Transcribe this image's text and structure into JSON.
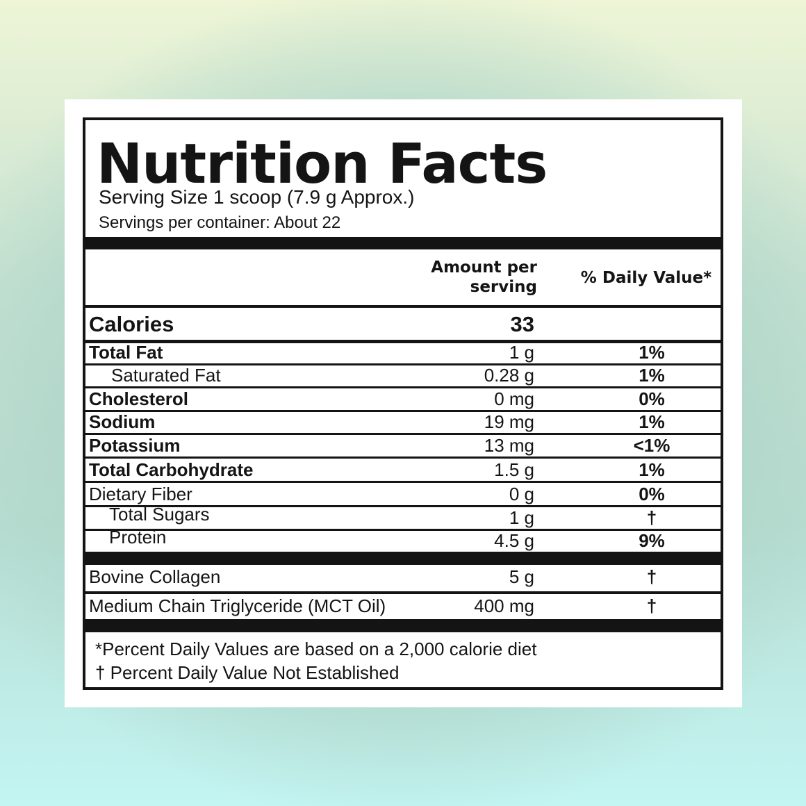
{
  "title": "Nutrition Facts",
  "serving_size": "Serving Size 1 scoop (7.9 g Approx.)",
  "servings_per_container": "Servings per container: About 22",
  "header": {
    "amount_line1": "Amount per",
    "amount_line2": "serving",
    "daily_value": "% Daily Value*"
  },
  "calories": {
    "name": "Calories",
    "amount": "33"
  },
  "nutrients": [
    {
      "name": "Total Fat",
      "amount": "1 g",
      "dv": "1%"
    },
    {
      "name": "Saturated Fat",
      "amount": "0.28 g",
      "dv": "1%"
    },
    {
      "name": "Cholesterol",
      "amount": "0 mg",
      "dv": "0%"
    },
    {
      "name": "Sodium",
      "amount": "19 mg",
      "dv": "1%"
    },
    {
      "name": "Potassium",
      "amount": "13 mg",
      "dv": "<1%"
    },
    {
      "name": "Total Carbohydrate",
      "amount": "1.5 g",
      "dv": "1%"
    },
    {
      "name": "Dietary Fiber",
      "amount": "0 g",
      "dv": "0%"
    },
    {
      "name": "Total Sugars",
      "amount": "1 g",
      "dv": "†"
    },
    {
      "name": "Protein",
      "amount": "4.5 g",
      "dv": "9%"
    }
  ],
  "other": [
    {
      "name": "Bovine Collagen",
      "amount": "5 g",
      "dv": "†"
    },
    {
      "name": "Medium Chain Triglyceride (MCT Oil)",
      "amount": "400 mg",
      "dv": "†"
    }
  ],
  "footnote1": "*Percent Daily Values are based on a 2,000 calorie diet",
  "footnote2": "† Percent Daily Value Not Established"
}
